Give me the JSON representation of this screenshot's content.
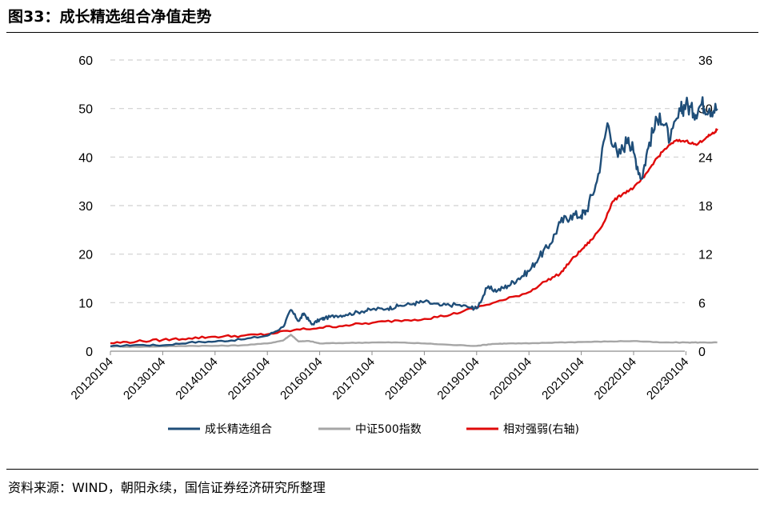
{
  "title": "图33：成长精选组合净值走势",
  "source": "资料来源：WIND，朝阳永续，国信证券经济研究所整理",
  "chart_data": {
    "type": "line",
    "x_tick_labels": [
      "20120104",
      "20130104",
      "20140104",
      "20150104",
      "20160104",
      "20170104",
      "20180104",
      "20190104",
      "20200104",
      "20210104",
      "20220104",
      "20230104"
    ],
    "y_left_ticks": [
      "0",
      "10",
      "20",
      "30",
      "40",
      "50",
      "60"
    ],
    "y_right_ticks": [
      "0",
      "6",
      "12",
      "18",
      "24",
      "30",
      "36"
    ],
    "ylim_left": [
      0,
      60
    ],
    "ylim_right": [
      0,
      36
    ],
    "grid": "horizontal dashed",
    "legend_position": "bottom",
    "x_start": 2012.0,
    "series": [
      {
        "name": "成长精选组合",
        "axis": "left",
        "color": "#1f4e79",
        "x": [
          2012.0,
          2012.5,
          2013.0,
          2013.5,
          2014.0,
          2014.5,
          2015.0,
          2015.3,
          2015.45,
          2015.6,
          2015.7,
          2015.85,
          2016.0,
          2016.1,
          2016.3,
          2016.5,
          2016.8,
          2017.0,
          2017.3,
          2017.5,
          2017.8,
          2018.0,
          2018.3,
          2018.6,
          2018.9,
          2019.0,
          2019.2,
          2019.4,
          2019.6,
          2019.8,
          2020.0,
          2020.2,
          2020.4,
          2020.6,
          2020.8,
          2021.0,
          2021.1,
          2021.3,
          2021.5,
          2021.7,
          2021.9,
          2022.0,
          2022.15,
          2022.3,
          2022.5,
          2022.7,
          2022.9,
          2023.0,
          2023.15,
          2023.3,
          2023.45,
          2023.6
        ],
        "values": [
          1.0,
          1.3,
          1.2,
          1.8,
          2.0,
          2.4,
          3.2,
          5.0,
          8.5,
          6.2,
          7.8,
          5.5,
          6.5,
          6.8,
          7.3,
          7.5,
          8.2,
          8.6,
          8.8,
          9.3,
          9.8,
          10.2,
          9.4,
          9.6,
          9.0,
          8.8,
          13.0,
          12.5,
          13.5,
          15.0,
          16.5,
          19.5,
          22.0,
          26.5,
          28.0,
          28.0,
          29.0,
          35.0,
          47.0,
          40.0,
          44.0,
          41.0,
          35.5,
          43.0,
          49.0,
          43.5,
          49.5,
          51.0,
          49.0,
          51.0,
          50.0,
          50.0
        ]
      },
      {
        "name": "中证500指数",
        "axis": "left",
        "color": "#a6a6a6",
        "x": [
          2012.0,
          2012.5,
          2013.0,
          2013.5,
          2014.0,
          2014.5,
          2015.0,
          2015.3,
          2015.45,
          2015.6,
          2015.8,
          2016.0,
          2016.5,
          2017.0,
          2017.5,
          2018.0,
          2018.5,
          2019.0,
          2019.3,
          2019.6,
          2020.0,
          2020.5,
          2021.0,
          2021.5,
          2022.0,
          2022.5,
          2023.0,
          2023.3,
          2023.6
        ],
        "values": [
          1.0,
          0.9,
          1.0,
          1.1,
          1.1,
          1.2,
          1.6,
          2.2,
          3.4,
          2.0,
          2.1,
          1.6,
          1.7,
          1.8,
          1.8,
          1.6,
          1.3,
          1.1,
          1.5,
          1.6,
          1.6,
          1.8,
          1.9,
          2.0,
          2.1,
          1.8,
          1.8,
          1.8,
          1.8
        ]
      },
      {
        "name": "相对强弱(右轴)",
        "axis": "right",
        "color": "#e00a0a",
        "x": [
          2012.0,
          2012.5,
          2013.0,
          2013.5,
          2014.0,
          2014.5,
          2015.0,
          2015.5,
          2016.0,
          2016.5,
          2017.0,
          2017.5,
          2018.0,
          2018.5,
          2019.0,
          2019.5,
          2020.0,
          2020.3,
          2020.6,
          2020.8,
          2021.0,
          2021.2,
          2021.4,
          2021.6,
          2021.8,
          2022.0,
          2022.2,
          2022.4,
          2022.6,
          2022.8,
          2023.0,
          2023.2,
          2023.4,
          2023.55,
          2023.6
        ],
        "values": [
          1.0,
          1.2,
          1.4,
          1.6,
          1.8,
          1.9,
          2.1,
          2.6,
          2.9,
          3.2,
          3.5,
          3.8,
          4.0,
          4.5,
          5.4,
          6.3,
          7.3,
          8.6,
          9.6,
          11.2,
          12.5,
          13.8,
          15.5,
          18.5,
          19.5,
          20.2,
          21.5,
          23.5,
          25.0,
          26.0,
          26.0,
          25.5,
          26.5,
          27.0,
          27.5
        ]
      }
    ]
  }
}
